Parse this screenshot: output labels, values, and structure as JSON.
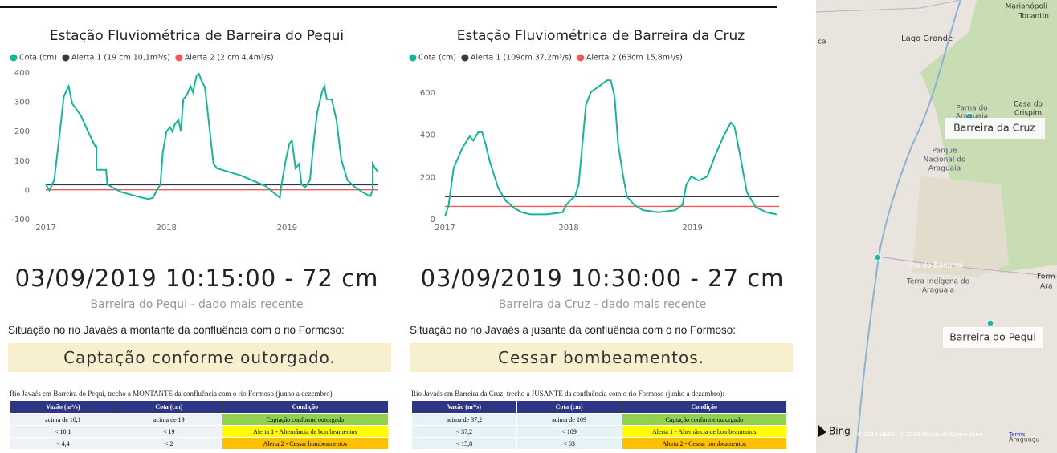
{
  "chart_data": [
    {
      "type": "line",
      "title": "Estação Fluviométrica de Barreira do Pequi",
      "x": [
        2017.0,
        2017.03,
        2017.07,
        2017.12,
        2017.15,
        2017.19,
        2017.22,
        2017.29,
        2017.35,
        2017.41,
        2017.42,
        2017.42,
        2017.5,
        2017.51,
        2017.62,
        2017.75,
        2017.85,
        2017.89,
        2017.92,
        2017.95,
        2017.97,
        2018.0,
        2018.03,
        2018.05,
        2018.07,
        2018.1,
        2018.12,
        2018.14,
        2018.17,
        2018.2,
        2018.22,
        2018.25,
        2018.27,
        2018.29,
        2018.32,
        2018.35,
        2018.39,
        2018.42,
        2018.62,
        2018.82,
        2018.94,
        2018.95,
        2018.99,
        2019.02,
        2019.04,
        2019.07,
        2019.1,
        2019.12,
        2019.15,
        2019.19,
        2019.22,
        2019.25,
        2019.29,
        2019.31,
        2019.33,
        2019.37,
        2019.41,
        2019.45,
        2019.5,
        2019.55,
        2019.62,
        2019.69,
        2019.71,
        2019.71,
        2019.73,
        2019.75
      ],
      "series": [
        {
          "name": "Cota (cm)",
          "color": "#17b39b",
          "values": [
            20,
            0,
            35,
            210,
            320,
            355,
            295,
            255,
            200,
            150,
            150,
            70,
            70,
            20,
            -5,
            -20,
            -30,
            -25,
            0,
            20,
            130,
            200,
            215,
            200,
            225,
            240,
            200,
            310,
            325,
            355,
            335,
            390,
            397,
            375,
            350,
            240,
            90,
            75,
            50,
            15,
            -25,
            10,
            105,
            160,
            170,
            75,
            90,
            20,
            10,
            35,
            160,
            265,
            335,
            355,
            310,
            310,
            240,
            105,
            35,
            15,
            -5,
            -20,
            0,
            90,
            75,
            65
          ]
        },
        {
          "name": "Alerta 1 (19 cm 10,1m³/s)",
          "color": "#2f3a44",
          "x": [
            2017.0,
            2019.75
          ],
          "values": [
            19,
            19
          ]
        },
        {
          "name": "Alerta 2 (2 cm 4,4m³/s)",
          "color": "#ef5a5a",
          "x": [
            2017.0,
            2019.75
          ],
          "values": [
            2,
            2
          ]
        }
      ],
      "xlim": [
        2017.0,
        2019.75
      ],
      "xticks": [
        2017,
        2018,
        2019
      ],
      "ylim": [
        -100,
        400
      ],
      "yticks": [
        -100,
        0,
        100,
        200,
        300,
        400
      ],
      "grid": false
    },
    {
      "type": "line",
      "title": "Estação Fluviométrica de Barreira da Cruz",
      "x": [
        2017.0,
        2017.03,
        2017.07,
        2017.14,
        2017.2,
        2017.23,
        2017.27,
        2017.3,
        2017.33,
        2017.36,
        2017.43,
        2017.49,
        2017.56,
        2017.62,
        2017.69,
        2017.82,
        2017.95,
        2017.98,
        2018.01,
        2018.05,
        2018.08,
        2018.11,
        2018.14,
        2018.18,
        2018.24,
        2018.31,
        2018.34,
        2018.37,
        2018.4,
        2018.44,
        2018.47,
        2018.53,
        2018.6,
        2018.73,
        2018.86,
        2018.92,
        2018.95,
        2018.99,
        2019.05,
        2019.12,
        2019.18,
        2019.25,
        2019.31,
        2019.34,
        2019.38,
        2019.44,
        2019.51,
        2019.6,
        2019.68
      ],
      "series": [
        {
          "name": "Cota (cm)",
          "color": "#17b39b",
          "values": [
            15,
            70,
            245,
            340,
            395,
            375,
            415,
            415,
            355,
            280,
            150,
            90,
            55,
            35,
            25,
            25,
            35,
            70,
            90,
            110,
            165,
            355,
            545,
            605,
            630,
            660,
            660,
            585,
            355,
            205,
            110,
            70,
            45,
            35,
            45,
            70,
            165,
            205,
            185,
            205,
            300,
            395,
            460,
            440,
            320,
            130,
            60,
            35,
            25
          ]
        },
        {
          "name": "Alerta 1 (109cm 37,2m³/s)",
          "color": "#2f3a44",
          "x": [
            2017.0,
            2019.7
          ],
          "values": [
            109,
            109
          ]
        },
        {
          "name": "Alerta 2 (63cm 15,8m³/s)",
          "color": "#ef5a5a",
          "x": [
            2017.0,
            2019.7
          ],
          "values": [
            63,
            63
          ]
        }
      ],
      "xlim": [
        2017.0,
        2019.7
      ],
      "xticks": [
        2017,
        2018,
        2019
      ],
      "ylim": [
        0,
        680
      ],
      "yticks": [
        0,
        200,
        400,
        600
      ],
      "grid": false
    }
  ],
  "panels": [
    {
      "timestamp": "03/09/2019 10:15:00 - 72 cm",
      "caption": "Barreira do Pequi - dado mais recente",
      "situation": "Situação no rio Javaés a montante da confluência com o rio Formoso:",
      "status": "Captação conforme outorgado.",
      "table": {
        "title": "Rio Javaés em Barreira do Pequi, trecho a MONTANTE da confluência com o rio Formoso (junho a dezembro)",
        "header": [
          "Vazão (m³/s)",
          "Cota (cm)",
          "Condição"
        ],
        "rows": [
          [
            "acima de 10,1",
            "acima de 19",
            "Captação conforme outorgado"
          ],
          [
            "< 10,1",
            "< 19",
            "Alerta 1 - Alternância de bombeamentos"
          ],
          [
            "< 4,4",
            "< 2",
            "Alerta 2 - Cessar bombeamentos"
          ]
        ]
      }
    },
    {
      "timestamp": "03/09/2019 10:30:00 - 27 cm",
      "caption": "Barreira da Cruz - dado mais recente",
      "situation": "Situação no rio Javaés a jusante da confluência com o rio Formoso:",
      "status": "Cessar bombeamentos.",
      "table": {
        "title": "Rio Javaés em Barreira da Cruz, trecho a JUSANTE da confluência com o rio Formoso (junho a dezembro):",
        "header": [
          "Vazão (m³/s)",
          "Cota (cm)",
          "Condição"
        ],
        "rows": [
          [
            "acima de 37,2",
            "acima de 109",
            "Captação conforme outorgado"
          ],
          [
            "< 37,2",
            "< 109",
            "Alerta 1 - Alternância de bombeamentos"
          ],
          [
            "< 15,8",
            "< 63",
            "Alerta 2 - Cessar bombeamentos"
          ]
        ]
      }
    }
  ],
  "map": {
    "labels": [
      "Marianópoli",
      "Tocantin",
      "ca",
      "Lago Grande",
      "Parna do",
      "Araguaia",
      "Casa do",
      "Crispim",
      "Parque",
      "Nacional do",
      "Araguaia",
      "Ilha do Bananal",
      "Terra Indígena do",
      "Araguaia",
      "Form",
      "Ara",
      "Bing",
      "© 2019 HERE, © 2019 Microsoft Corporation",
      "Terms",
      "Araguaçu"
    ],
    "stations": [
      "Barreira da Cruz",
      "Barreira do Pequi"
    ]
  }
}
